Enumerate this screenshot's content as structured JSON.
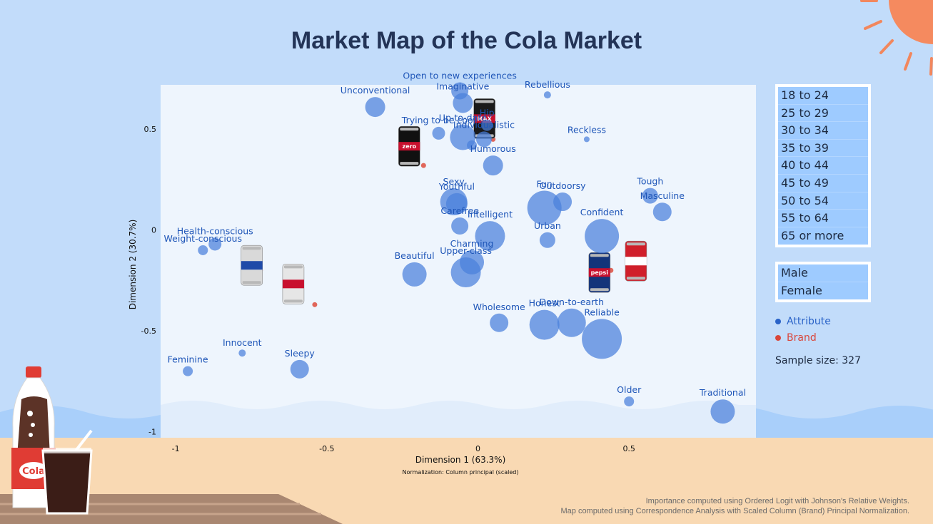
{
  "title": "Market Map of the Cola Market",
  "filters": {
    "age_groups": [
      "18 to 24",
      "25 to 29",
      "30 to 34",
      "35 to 39",
      "40 to 44",
      "45 to 49",
      "50 to 54",
      "55 to 64",
      "65 or more"
    ],
    "genders": [
      "Male",
      "Female"
    ]
  },
  "legend": {
    "attribute": "Attribute",
    "brand": "Brand"
  },
  "sample_size": "Sample size: 327",
  "footnotes": {
    "line1": "Importance computed using Ordered Logit with Johnson's Relative Weights.",
    "line2": "Map computed using Correspondence Analysis with Scaled Column (Brand) Principal Normalization."
  },
  "colors": {
    "attribute": "#4a7fdb",
    "attribute_label": "#1f56b8",
    "brand": "#e0665a",
    "plot_bg": "#eef5fd",
    "title": "#233457"
  },
  "chart_data": {
    "type": "scatter",
    "xlabel": "Dimension 1 (63.3%)",
    "ylabel": "Dimension 2 (30.7%)",
    "subtitle": "Normalization: Column principal (scaled)",
    "xlim": [
      -1.05,
      0.92
    ],
    "ylim": [
      -1.03,
      0.72
    ],
    "xticks": [
      -1,
      -0.5,
      0,
      0.5
    ],
    "yticks": [
      0.5,
      0,
      -0.5,
      -1
    ],
    "grid": false,
    "attributes": [
      {
        "label": "Open to new experiences",
        "x": -0.06,
        "y": 0.69,
        "size": 12
      },
      {
        "label": "Rebellious",
        "x": 0.23,
        "y": 0.67,
        "size": 5
      },
      {
        "label": "Unconventional",
        "x": -0.34,
        "y": 0.61,
        "size": 14
      },
      {
        "label": "Imaginative",
        "x": -0.05,
        "y": 0.63,
        "size": 14
      },
      {
        "label": "Trying to be cool",
        "x": -0.13,
        "y": 0.48,
        "size": 9
      },
      {
        "label": "Hip",
        "x": 0.03,
        "y": 0.52,
        "size": 8
      },
      {
        "label": "Up-to-date",
        "x": -0.05,
        "y": 0.46,
        "size": 18
      },
      {
        "label": "Reckless",
        "x": 0.36,
        "y": 0.45,
        "size": 4
      },
      {
        "label": "Individualistic",
        "x": 0.02,
        "y": 0.45,
        "size": 11
      },
      {
        "label": "",
        "x": -0.02,
        "y": 0.42,
        "size": 7
      },
      {
        "label": "Humorous",
        "x": 0.05,
        "y": 0.32,
        "size": 14
      },
      {
        "label": "Outdoorsy",
        "x": 0.28,
        "y": 0.14,
        "size": 13
      },
      {
        "label": "Tough",
        "x": 0.57,
        "y": 0.17,
        "size": 11
      },
      {
        "label": "Sexy",
        "x": -0.08,
        "y": 0.14,
        "size": 19
      },
      {
        "label": "Youthful",
        "x": -0.07,
        "y": 0.13,
        "size": 15
      },
      {
        "label": "Fun",
        "x": 0.22,
        "y": 0.11,
        "size": 24
      },
      {
        "label": "Masculine",
        "x": 0.61,
        "y": 0.09,
        "size": 13
      },
      {
        "label": "Intelligent",
        "x": 0.04,
        "y": -0.03,
        "size": 21
      },
      {
        "label": "Confident",
        "x": 0.41,
        "y": -0.03,
        "size": 24
      },
      {
        "label": "Carefree",
        "x": -0.06,
        "y": 0.02,
        "size": 12
      },
      {
        "label": "Health-conscious",
        "x": -0.87,
        "y": -0.07,
        "size": 9
      },
      {
        "label": "Weight-conscious",
        "x": -0.91,
        "y": -0.1,
        "size": 7
      },
      {
        "label": "Urban",
        "x": 0.23,
        "y": -0.05,
        "size": 11
      },
      {
        "label": "Beautiful",
        "x": -0.21,
        "y": -0.22,
        "size": 17
      },
      {
        "label": "Charming",
        "x": -0.02,
        "y": -0.16,
        "size": 17
      },
      {
        "label": "Upper-class",
        "x": -0.04,
        "y": -0.21,
        "size": 21
      },
      {
        "label": "Wholesome",
        "x": 0.07,
        "y": -0.46,
        "size": 13
      },
      {
        "label": "Down-to-earth",
        "x": 0.31,
        "y": -0.46,
        "size": 20
      },
      {
        "label": "Honest",
        "x": 0.22,
        "y": -0.47,
        "size": 21
      },
      {
        "label": "Reliable",
        "x": 0.41,
        "y": -0.54,
        "size": 28
      },
      {
        "label": "Innocent",
        "x": -0.78,
        "y": -0.61,
        "size": 5
      },
      {
        "label": "Sleepy",
        "x": -0.59,
        "y": -0.69,
        "size": 13
      },
      {
        "label": "Feminine",
        "x": -0.96,
        "y": -0.7,
        "size": 7
      },
      {
        "label": "Older",
        "x": 0.5,
        "y": -0.85,
        "size": 7
      },
      {
        "label": "Traditional",
        "x": 0.81,
        "y": -0.9,
        "size": 17
      }
    ],
    "brands": [
      {
        "name": "Pepsi Max",
        "x": 0.05,
        "y": 0.45,
        "icon": "pepsi-max-can"
      },
      {
        "name": "Coke Zero",
        "x": -0.18,
        "y": 0.32,
        "icon": "coke-zero-can"
      },
      {
        "name": "Diet Coke",
        "x": -0.54,
        "y": -0.37,
        "icon": "diet-coke-can"
      },
      {
        "name": "Diet Pepsi",
        "x": -0.72,
        "y": -0.2,
        "icon": "diet-pepsi-can"
      },
      {
        "name": "Coke",
        "x": 0.53,
        "y": -0.2,
        "icon": "coke-can"
      },
      {
        "name": "Pepsi",
        "x": 0.44,
        "y": -0.2,
        "icon": "pepsi-can"
      }
    ]
  }
}
